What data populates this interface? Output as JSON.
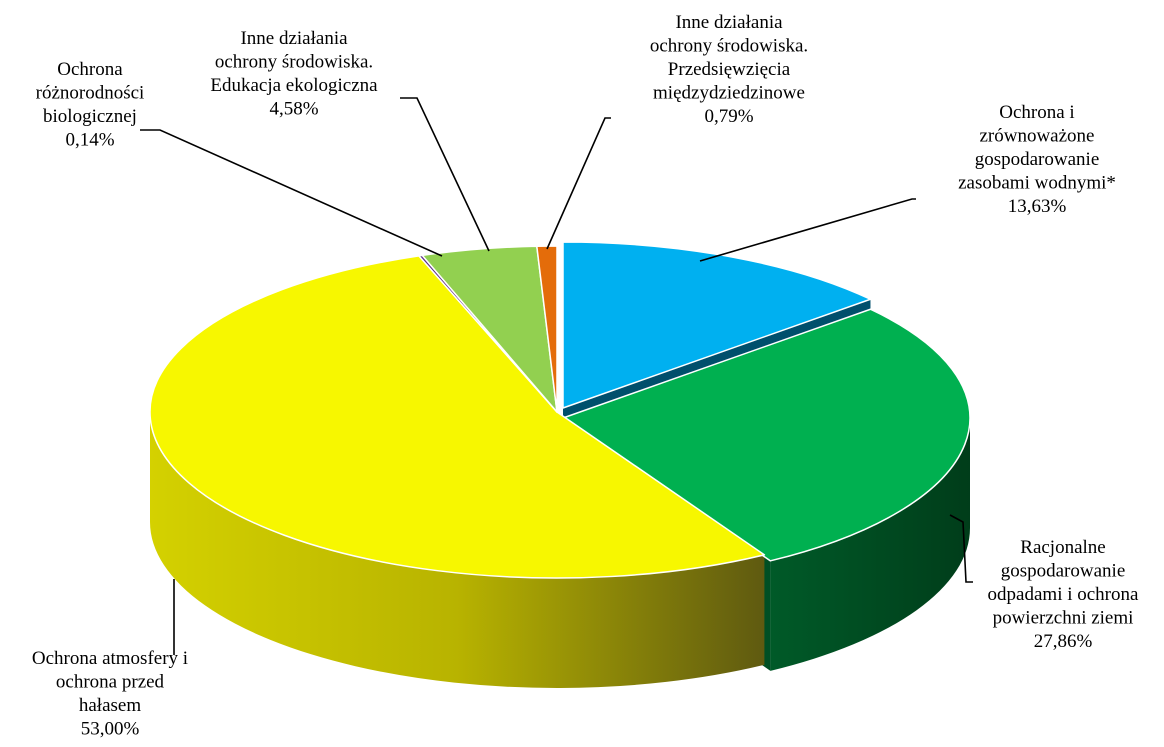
{
  "chart_data": {
    "type": "pie",
    "title": "",
    "slices": [
      {
        "key": "water",
        "label_lines": [
          "Ochrona i",
          "zrównoważone",
          "gospodarowanie",
          "zasobami wodnymi*"
        ],
        "value_label": "13,63%",
        "value": 13.63,
        "color": "#00B0F0"
      },
      {
        "key": "waste",
        "label_lines": [
          "Racjonalne",
          "gospodarowanie",
          "odpadami i ochrona",
          "powierzchni ziemi"
        ],
        "value_label": "27,86%",
        "value": 27.86,
        "color": "#00B050"
      },
      {
        "key": "air",
        "label_lines": [
          "Ochrona atmosfery i",
          "ochrona przed",
          "hałasem"
        ],
        "value_label": "53,00%",
        "value": 53.0,
        "color": "#F7F700"
      },
      {
        "key": "bio",
        "label_lines": [
          "Ochrona",
          "różnorodności",
          "biologicznej"
        ],
        "value_label": "0,14%",
        "value": 0.14,
        "color": "#5B2C83"
      },
      {
        "key": "edu",
        "label_lines": [
          "Inne działania",
          "ochrony środowiska.",
          "Edukacja ekologiczna"
        ],
        "value_label": "4,58%",
        "value": 4.58,
        "color": "#92D050"
      },
      {
        "key": "inter",
        "label_lines": [
          "Inne działania",
          "ochrony środowiska.",
          "Przedsięwzięcia",
          "międzydziedzinowe"
        ],
        "value_label": "0,79%",
        "value": 0.79,
        "color": "#E46C0A"
      }
    ]
  }
}
